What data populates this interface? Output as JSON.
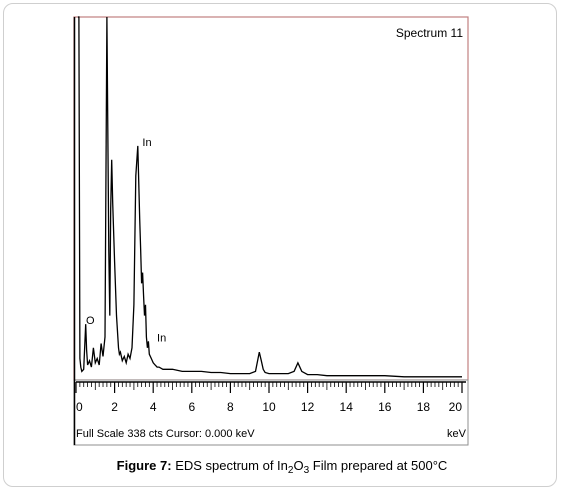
{
  "chart_data": {
    "type": "line",
    "spectrum_label": "Spectrum 11",
    "xlabel": "keV",
    "xlim": [
      0,
      20
    ],
    "ylim": [
      0,
      338
    ],
    "x_ticks": [
      "0",
      "2",
      "4",
      "6",
      "8",
      "10",
      "12",
      "14",
      "16",
      "18",
      "20"
    ],
    "full_scale_text": "Full Scale 338 cts  Cursor: 0.000 keV",
    "peak_labels": [
      {
        "text": "O",
        "x": 0.52,
        "y": 52
      },
      {
        "text": "In",
        "x": 3.44,
        "y": 218
      },
      {
        "text": "In",
        "x": 4.2,
        "y": 36
      }
    ],
    "series": [
      {
        "x": [
          0.1,
          0.15,
          0.2,
          0.25,
          0.3,
          0.4,
          0.5,
          0.55,
          0.6,
          0.7,
          0.8,
          0.9,
          1.0,
          1.1,
          1.2,
          1.3,
          1.4,
          1.5,
          1.6,
          1.7,
          1.75,
          1.8,
          1.85,
          1.9,
          2.0,
          2.1,
          2.2,
          2.25,
          2.3,
          2.4,
          2.5,
          2.6,
          2.7,
          2.8,
          2.9,
          3.0,
          3.1,
          3.2,
          3.3,
          3.35,
          3.4,
          3.45,
          3.5,
          3.55,
          3.6,
          3.65,
          3.7,
          3.75,
          3.8,
          3.9,
          4.0,
          4.1,
          4.2,
          4.3,
          4.5,
          5.0,
          5.5,
          6.0,
          6.5,
          7.0,
          7.5,
          8.0,
          8.5,
          9.0,
          9.3,
          9.5,
          9.6,
          9.7,
          9.8,
          10.0,
          10.5,
          11.0,
          11.3,
          11.5,
          11.7,
          12.0,
          12.5,
          13.0,
          13.5,
          14.0,
          15.0,
          16.0,
          17.0,
          18.0,
          19.0,
          20.0
        ],
        "y": [
          338,
          338,
          20,
          12,
          8,
          10,
          52,
          28,
          14,
          18,
          12,
          30,
          16,
          20,
          14,
          34,
          22,
          40,
          338,
          120,
          60,
          160,
          205,
          165,
          110,
          60,
          30,
          24,
          26,
          18,
          22,
          16,
          24,
          20,
          30,
          70,
          190,
          218,
          150,
          120,
          90,
          100,
          80,
          60,
          70,
          40,
          30,
          36,
          24,
          20,
          16,
          14,
          12,
          12,
          10,
          10,
          8,
          8,
          8,
          7,
          7,
          6,
          6,
          6,
          8,
          26,
          18,
          10,
          7,
          6,
          6,
          6,
          8,
          16,
          8,
          5,
          5,
          4,
          4,
          4,
          4,
          4,
          3,
          3,
          3,
          3
        ]
      }
    ],
    "grid": false
  },
  "caption": {
    "figure_label": "Figure 7:",
    "text_before": " EDS spectrum of In",
    "sub1": "2",
    "mid": "O",
    "sub2": "3",
    "text_after": "   Film prepared at 500°C"
  }
}
